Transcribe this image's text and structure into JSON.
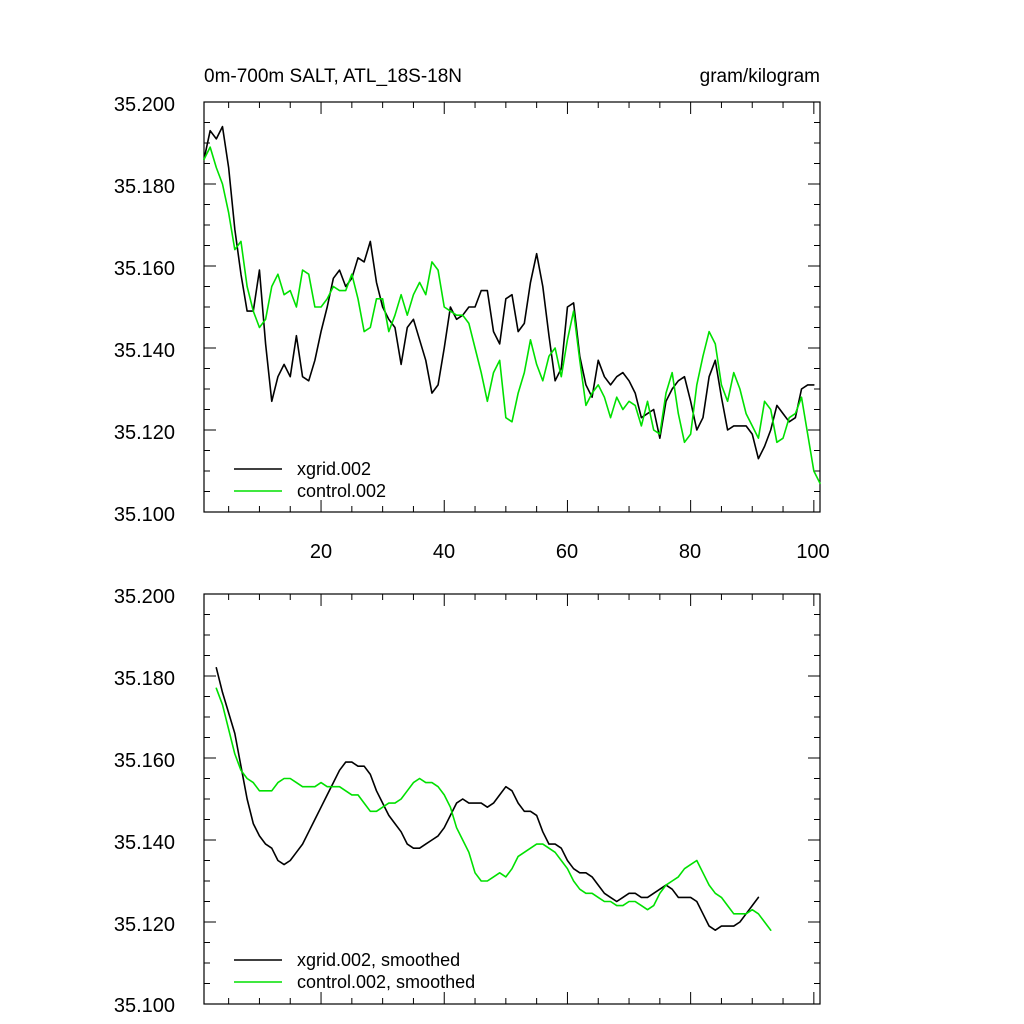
{
  "colors": {
    "xgrid": "#000000",
    "control": "#00e000",
    "axis": "#000000",
    "background": "#ffffff"
  },
  "chart_data": [
    {
      "type": "line",
      "title_left": "0m-700m SALT, ATL_18S-18N",
      "title_right": "gram/kilogram",
      "xlabel": "",
      "ylabel": "",
      "xlim": [
        1,
        101
      ],
      "ylim": [
        35.1,
        35.2
      ],
      "y_ticks": [
        "35.200",
        "35.180",
        "35.160",
        "35.140",
        "35.120",
        "35.100"
      ],
      "x_ticks": [
        "20",
        "40",
        "60",
        "80",
        "100"
      ],
      "legend_position": "bottom-left",
      "legend": [
        "xgrid.002",
        "control.002"
      ],
      "series": [
        {
          "name": "xgrid.002",
          "color": "#000000",
          "x_start": 1,
          "values": [
            35.186,
            35.193,
            35.191,
            35.194,
            35.184,
            35.169,
            35.158,
            35.149,
            35.149,
            35.159,
            35.141,
            35.127,
            35.133,
            35.136,
            35.133,
            35.143,
            35.133,
            35.132,
            35.137,
            35.144,
            35.15,
            35.157,
            35.159,
            35.155,
            35.157,
            35.162,
            35.161,
            35.166,
            35.156,
            35.15,
            35.147,
            35.145,
            35.136,
            35.145,
            35.147,
            35.142,
            35.137,
            35.129,
            35.131,
            35.14,
            35.15,
            35.147,
            35.148,
            35.15,
            35.15,
            35.154,
            35.154,
            35.144,
            35.141,
            35.152,
            35.153,
            35.144,
            35.146,
            35.156,
            35.163,
            35.155,
            35.143,
            35.132,
            35.135,
            35.15,
            35.151,
            35.138,
            35.131,
            35.128,
            35.137,
            35.133,
            35.131,
            35.133,
            35.134,
            35.132,
            35.129,
            35.123,
            35.124,
            35.125,
            35.118,
            35.127,
            35.13,
            35.132,
            35.133,
            35.127,
            35.12,
            35.123,
            35.133,
            35.137,
            35.128,
            35.12,
            35.121,
            35.121,
            35.121,
            35.119,
            35.113,
            35.116,
            35.12,
            35.126,
            35.124,
            35.122,
            35.123,
            35.13,
            35.131,
            35.131
          ]
        },
        {
          "name": "control.002",
          "color": "#00e000",
          "x_start": 1,
          "values": [
            35.186,
            35.189,
            35.184,
            35.18,
            35.173,
            35.164,
            35.166,
            35.155,
            35.149,
            35.145,
            35.147,
            35.155,
            35.158,
            35.153,
            35.154,
            35.15,
            35.159,
            35.158,
            35.15,
            35.15,
            35.152,
            35.155,
            35.154,
            35.154,
            35.158,
            35.152,
            35.144,
            35.145,
            35.152,
            35.152,
            35.144,
            35.148,
            35.153,
            35.148,
            35.153,
            35.156,
            35.153,
            35.161,
            35.159,
            35.15,
            35.149,
            35.148,
            35.148,
            35.146,
            35.14,
            35.134,
            35.127,
            35.134,
            35.137,
            35.123,
            35.122,
            35.129,
            35.134,
            35.142,
            35.136,
            35.132,
            35.138,
            35.14,
            35.133,
            35.142,
            35.149,
            35.137,
            35.126,
            35.129,
            35.131,
            35.128,
            35.123,
            35.128,
            35.125,
            35.127,
            35.126,
            35.121,
            35.127,
            35.12,
            35.119,
            35.129,
            35.134,
            35.124,
            35.117,
            35.119,
            35.131,
            35.138,
            35.144,
            35.141,
            35.131,
            35.127,
            35.134,
            35.13,
            35.124,
            35.121,
            35.118,
            35.127,
            35.125,
            35.117,
            35.118,
            35.123,
            35.124,
            35.128,
            35.119,
            35.11,
            35.107
          ]
        }
      ]
    },
    {
      "type": "line",
      "xlabel": "",
      "ylabel": "",
      "xlim": [
        1,
        101
      ],
      "ylim": [
        35.1,
        35.2
      ],
      "y_ticks": [
        "35.200",
        "35.180",
        "35.160",
        "35.140",
        "35.120",
        "35.100"
      ],
      "legend_position": "bottom-left",
      "legend": [
        "xgrid.002, smoothed",
        "control.002, smoothed"
      ],
      "series": [
        {
          "name": "xgrid.002, smoothed",
          "color": "#000000",
          "x_start": 3,
          "values": [
            35.182,
            35.176,
            35.171,
            35.166,
            35.158,
            35.15,
            35.144,
            35.141,
            35.139,
            35.138,
            35.135,
            35.134,
            35.135,
            35.137,
            35.139,
            35.142,
            35.145,
            35.148,
            35.151,
            35.154,
            35.157,
            35.159,
            35.159,
            35.158,
            35.158,
            35.156,
            35.152,
            35.149,
            35.146,
            35.144,
            35.142,
            35.139,
            35.138,
            35.138,
            35.139,
            35.14,
            35.141,
            35.143,
            35.146,
            35.149,
            35.15,
            35.149,
            35.149,
            35.149,
            35.148,
            35.149,
            35.151,
            35.153,
            35.152,
            35.149,
            35.147,
            35.147,
            35.146,
            35.142,
            35.139,
            35.139,
            35.138,
            35.135,
            35.133,
            35.132,
            35.132,
            35.131,
            35.129,
            35.127,
            35.126,
            35.125,
            35.126,
            35.127,
            35.127,
            35.126,
            35.126,
            35.127,
            35.128,
            35.129,
            35.128,
            35.126,
            35.126,
            35.126,
            35.125,
            35.122,
            35.119,
            35.118,
            35.119,
            35.119,
            35.119,
            35.12,
            35.122,
            35.124,
            35.126
          ]
        },
        {
          "name": "control.002, smoothed",
          "color": "#00e000",
          "x_start": 3,
          "values": [
            35.177,
            35.173,
            35.167,
            35.161,
            35.157,
            35.155,
            35.154,
            35.152,
            35.152,
            35.152,
            35.154,
            35.155,
            35.155,
            35.154,
            35.153,
            35.153,
            35.153,
            35.154,
            35.153,
            35.153,
            35.153,
            35.152,
            35.151,
            35.151,
            35.149,
            35.147,
            35.147,
            35.148,
            35.149,
            35.149,
            35.15,
            35.152,
            35.154,
            35.155,
            35.154,
            35.154,
            35.153,
            35.151,
            35.148,
            35.143,
            35.14,
            35.137,
            35.132,
            35.13,
            35.13,
            35.131,
            35.132,
            35.131,
            35.133,
            35.136,
            35.137,
            35.138,
            35.139,
            35.139,
            35.138,
            35.137,
            35.135,
            35.133,
            35.13,
            35.128,
            35.127,
            35.127,
            35.126,
            35.125,
            35.125,
            35.124,
            35.124,
            35.125,
            35.125,
            35.124,
            35.123,
            35.124,
            35.127,
            35.129,
            35.13,
            35.131,
            35.133,
            35.134,
            35.135,
            35.132,
            35.129,
            35.127,
            35.126,
            35.124,
            35.122,
            35.122,
            35.122,
            35.123,
            35.122,
            35.12,
            35.118
          ]
        }
      ]
    }
  ]
}
